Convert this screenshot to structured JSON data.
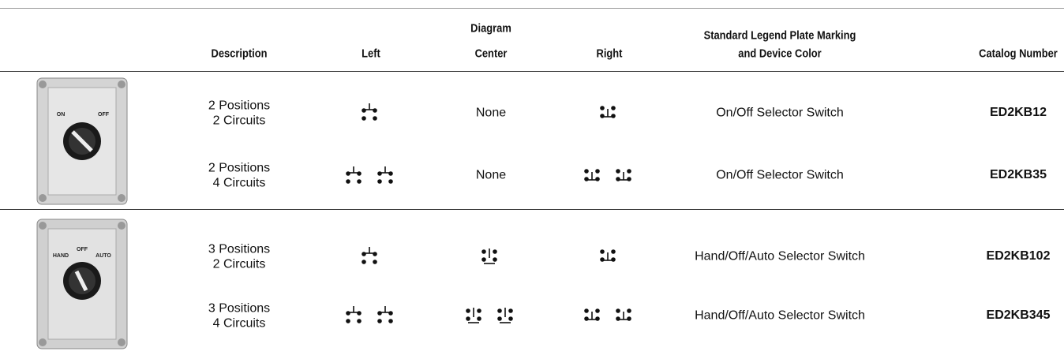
{
  "header": {
    "diagram": "Diagram",
    "description": "Description",
    "left": "Left",
    "center": "Center",
    "right": "Right",
    "legend": [
      "Standard Legend Plate Marking",
      "and Device Color"
    ],
    "catalog": "Catalog Number"
  },
  "groups": [
    {
      "image_labels": [
        "ON",
        "OFF"
      ],
      "rows": [
        {
          "description": [
            "2 Positions",
            "2 Circuits"
          ],
          "center": "None",
          "legend": "On/Off Selector Switch",
          "catalog": "ED2KB12"
        },
        {
          "description": [
            "2 Positions",
            "4 Circuits"
          ],
          "center": "None",
          "legend": "On/Off Selector Switch",
          "catalog": "ED2KB35"
        }
      ]
    },
    {
      "image_labels": [
        "OFF",
        "HAND",
        "AUTO"
      ],
      "rows": [
        {
          "description": [
            "3 Positions",
            "2 Circuits"
          ],
          "legend": "Hand/Off/Auto Selector Switch",
          "catalog": "ED2KB102"
        },
        {
          "description": [
            "3 Positions",
            "4 Circuits"
          ],
          "legend": "Hand/Off/Auto Selector Switch",
          "catalog": "ED2KB345"
        }
      ]
    }
  ]
}
